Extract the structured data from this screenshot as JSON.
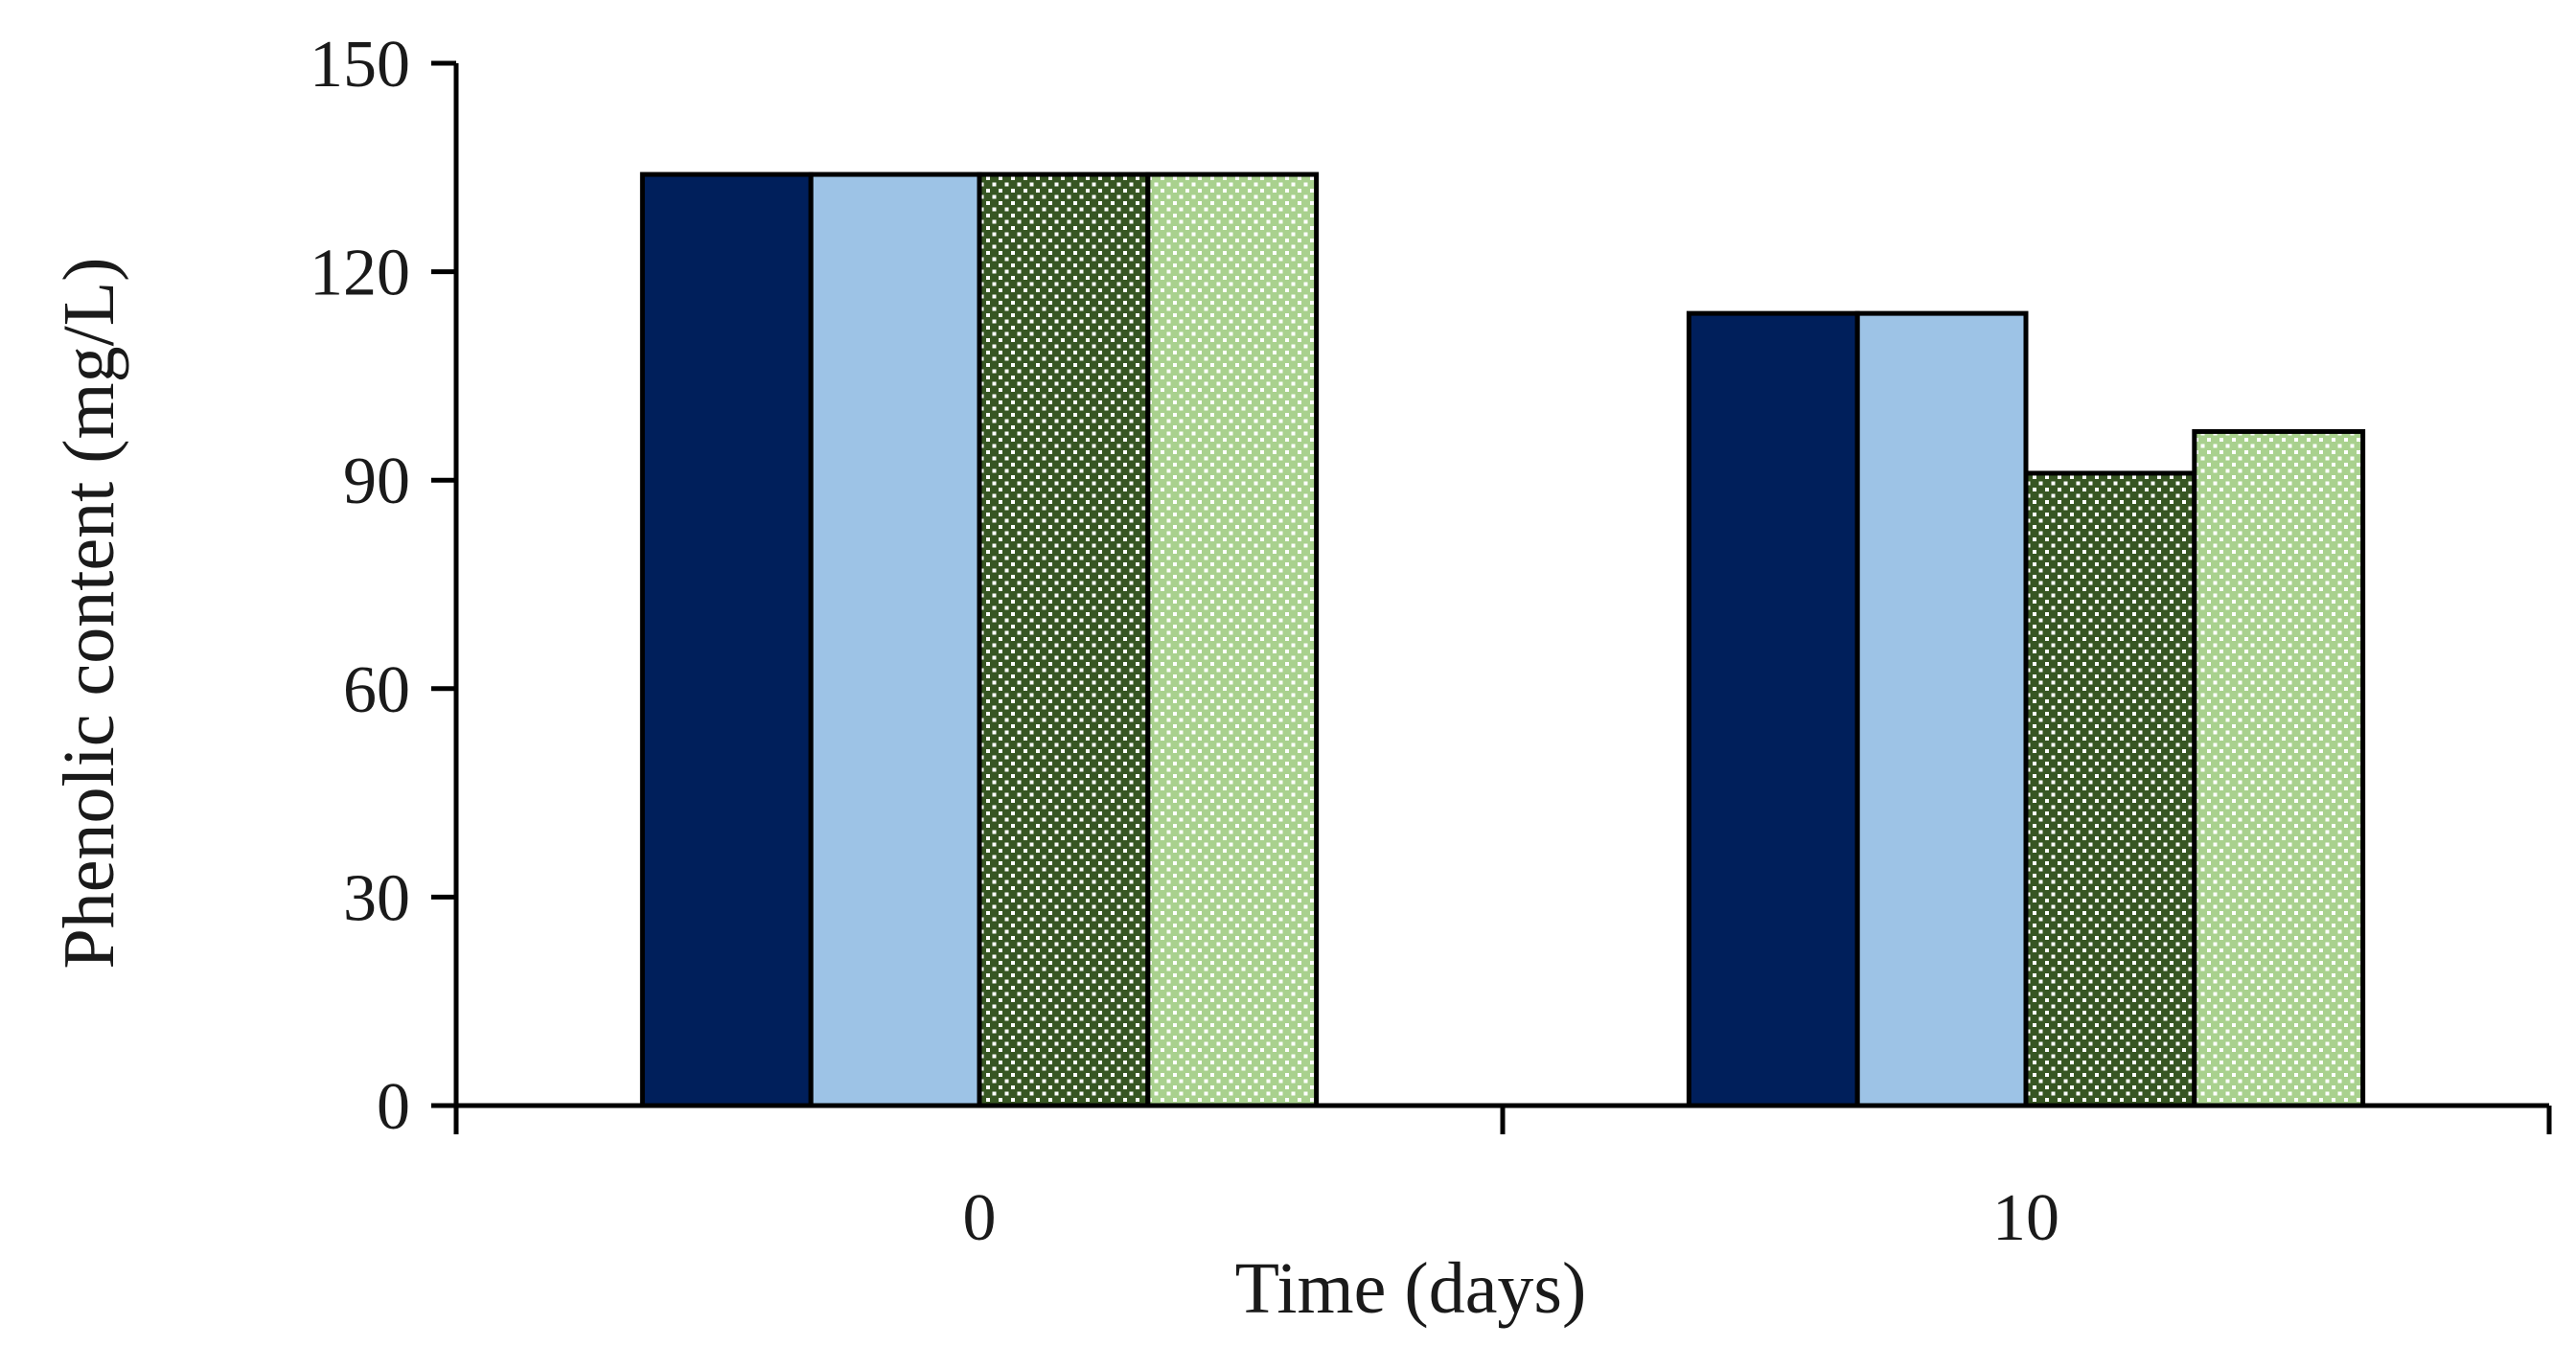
{
  "chart_data": {
    "type": "bar",
    "categories": [
      "0",
      "10"
    ],
    "series": [
      {
        "values": [
          134,
          114
        ],
        "color": "#001f5b",
        "pattern": "solid"
      },
      {
        "values": [
          134,
          114
        ],
        "color": "#9dc3e6",
        "pattern": "solid"
      },
      {
        "values": [
          134,
          91
        ],
        "color": "#375623",
        "pattern": "dots"
      },
      {
        "values": [
          134,
          97
        ],
        "color": "#a9d18e",
        "pattern": "dots"
      }
    ],
    "xlabel": "Time (days)",
    "ylabel": "Phenolic content (mg/L)",
    "ylim": [
      0,
      150
    ],
    "yticks": [
      0,
      30,
      60,
      90,
      120,
      150
    ],
    "grid": false,
    "legend": "none"
  }
}
